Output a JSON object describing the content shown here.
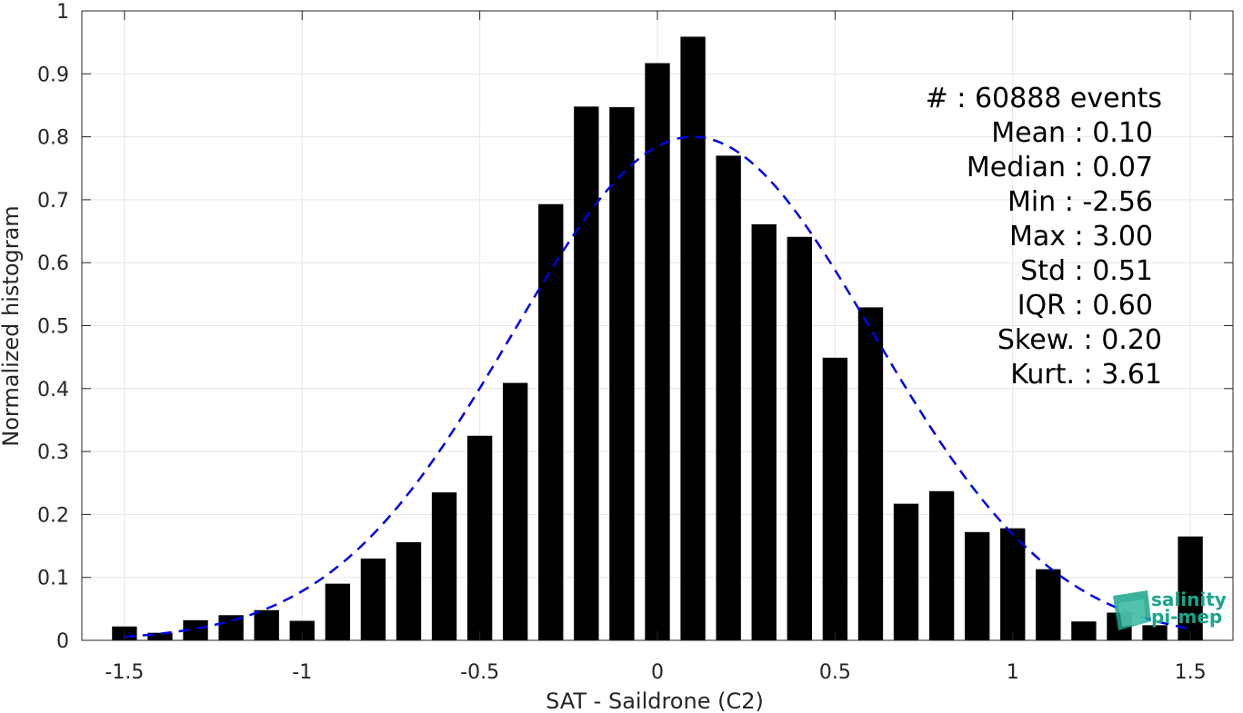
{
  "chart_data": {
    "type": "bar",
    "xlabel": "SAT - Saildrone (C2)",
    "ylabel": "Normalized histogram",
    "xlim": [
      -1.62,
      1.62
    ],
    "ylim": [
      0,
      1
    ],
    "xticks": [
      -1.5,
      -1,
      -0.5,
      0,
      0.5,
      1,
      1.5
    ],
    "xtick_labels": [
      "-1.5",
      "-1",
      "-0.5",
      "0",
      "0.5",
      "1",
      "1.5"
    ],
    "yticks": [
      0,
      0.1,
      0.2,
      0.3,
      0.4,
      0.5,
      0.6,
      0.7,
      0.8,
      0.9,
      1
    ],
    "ytick_labels": [
      "0",
      "0.1",
      "0.2",
      "0.3",
      "0.4",
      "0.5",
      "0.6",
      "0.7",
      "0.8",
      "0.9",
      "1"
    ],
    "grid": true,
    "bar_width": 0.07,
    "bar_color": "#000000",
    "bins": [
      -1.5,
      -1.4,
      -1.3,
      -1.2,
      -1.1,
      -1.0,
      -0.9,
      -0.8,
      -0.7,
      -0.6,
      -0.5,
      -0.4,
      -0.3,
      -0.2,
      -0.1,
      0.0,
      0.1,
      0.2,
      0.3,
      0.4,
      0.5,
      0.6,
      0.7,
      0.8,
      0.9,
      1.0,
      1.1,
      1.2,
      1.3,
      1.4,
      1.5
    ],
    "values": [
      0.022,
      0.012,
      0.032,
      0.04,
      0.048,
      0.031,
      0.09,
      0.13,
      0.156,
      0.235,
      0.325,
      0.409,
      0.693,
      0.848,
      0.847,
      0.917,
      0.959,
      0.77,
      0.661,
      0.641,
      0.449,
      0.529,
      0.217,
      0.237,
      0.172,
      0.178,
      0.113,
      0.03,
      0.044,
      0.024,
      0.165
    ],
    "fit_curve": {
      "style": "dashed",
      "color": "#0000e6",
      "mean": 0.1,
      "std": 0.51,
      "peak": 0.8,
      "x_range": [
        -1.5,
        1.5
      ]
    },
    "annotations": [
      "#  : 60888 events",
      "Mean : 0.10",
      "Median : 0.07",
      "Min : -2.56",
      "Max : 3.00",
      "Std : 0.51",
      "IQR : 0.60",
      "Skew. : 0.20",
      "Kurt. : 3.61"
    ],
    "logo": {
      "line1": "salinity",
      "line2": "pi-mep",
      "color": "#1aa58c"
    }
  }
}
